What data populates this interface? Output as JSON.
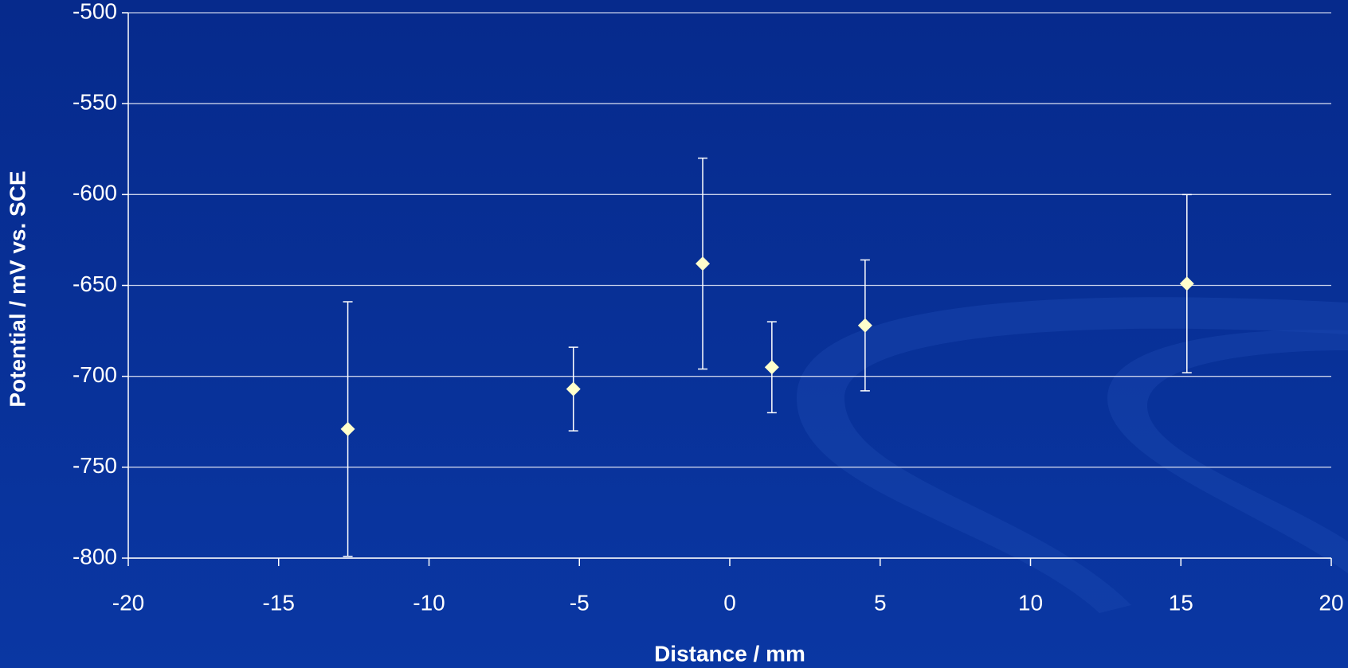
{
  "chart_data": {
    "type": "scatter",
    "x_label": "Distance / mm",
    "y_label": "Potential / mV vs. SCE",
    "series": [
      {
        "color": "#ffffcc",
        "x": [
          -12.7,
          -5.2,
          -0.9,
          1.4,
          4.5,
          15.2
        ],
        "values": [
          -729,
          -707,
          -638,
          -695,
          -672,
          -649
        ],
        "errors": [
          70,
          23,
          58,
          25,
          36,
          49
        ]
      }
    ],
    "xlim": [
      -20,
      20
    ],
    "xticks": [
      -20,
      -15,
      -10,
      -5,
      0,
      5,
      10,
      15,
      20
    ],
    "ylim": [
      -800,
      -500
    ],
    "yticks": [
      -800,
      -750,
      -700,
      -650,
      -600,
      -550,
      -500
    ],
    "grid": true
  }
}
